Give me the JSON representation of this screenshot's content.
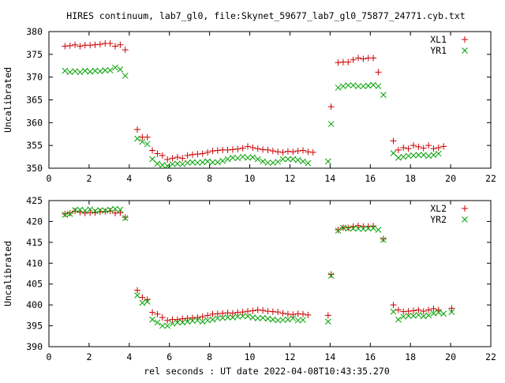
{
  "title": "HIRES continuum, lab7_gl0, file:Skynet_59677_lab7_gl0_75877_24771.cyb.txt",
  "xlabel": "rel seconds : UT date 2022-04-08T10:43:35.270",
  "colors": {
    "plus": "#cc0000",
    "cross": "#00a000",
    "axis": "#000000"
  },
  "chart_data": [
    {
      "type": "scatter",
      "ylabel": "Uncalibrated",
      "xlim": [
        0,
        22
      ],
      "ylim": [
        350,
        380
      ],
      "xticks": [
        "0",
        "2",
        "4",
        "6",
        "8",
        "10",
        "12",
        "14",
        "16",
        "18",
        "20",
        "22"
      ],
      "yticks": [
        "350",
        "355",
        "360",
        "365",
        "370",
        "375",
        "380"
      ],
      "x": [
        0.8,
        1.05,
        1.3,
        1.55,
        1.8,
        2.05,
        2.3,
        2.55,
        2.8,
        3.05,
        3.3,
        3.55,
        3.8,
        4.05,
        4.4,
        4.65,
        4.9,
        5.15,
        5.4,
        5.65,
        5.9,
        6.15,
        6.4,
        6.65,
        6.9,
        7.15,
        7.4,
        7.65,
        7.9,
        8.15,
        8.4,
        8.65,
        8.9,
        9.15,
        9.4,
        9.65,
        9.9,
        10.15,
        10.4,
        10.65,
        10.9,
        11.15,
        11.4,
        11.65,
        11.9,
        12.15,
        12.4,
        12.65,
        12.9,
        13.15,
        13.4,
        13.65,
        13.9,
        14.05,
        14.4,
        14.65,
        14.9,
        15.15,
        15.4,
        15.65,
        15.9,
        16.15,
        16.4,
        16.65,
        16.9,
        17.15,
        17.4,
        17.65,
        17.9,
        18.15,
        18.4,
        18.65,
        18.9,
        19.15,
        19.4,
        19.65,
        19.9,
        20.05
      ],
      "series": [
        {
          "name": "XL1",
          "marker": "plus",
          "values": [
            376.8,
            376.9,
            377.1,
            376.8,
            377.0,
            377.0,
            377.1,
            377.2,
            377.4,
            377.4,
            376.8,
            377.1,
            376.0,
            358.5,
            356.8,
            356.8,
            353.9,
            353.2,
            352.8,
            351.9,
            352.2,
            352.4,
            352.2,
            352.8,
            353.0,
            353.1,
            353.2,
            353.5,
            353.8,
            353.9,
            354.0,
            354.0,
            354.1,
            354.2,
            354.4,
            354.8,
            354.5,
            354.3,
            354.1,
            354.0,
            353.8,
            353.6,
            353.5,
            353.7,
            353.6,
            353.8,
            353.9,
            353.6,
            353.5,
            363.5,
            373.2,
            373.3,
            373.3,
            373.8,
            374.2,
            374.0,
            374.2,
            374.2,
            371.1,
            356.0,
            354.0,
            354.5,
            354.3,
            355.0,
            354.7,
            354.4,
            355.0,
            354.3,
            354.5,
            354.8
          ],
          "x": [
            0.8,
            1.05,
            1.3,
            1.55,
            1.8,
            2.05,
            2.3,
            2.55,
            2.8,
            3.05,
            3.3,
            3.55,
            3.8,
            4.4,
            4.65,
            4.9,
            5.15,
            5.4,
            5.65,
            5.9,
            6.15,
            6.4,
            6.65,
            6.9,
            7.15,
            7.4,
            7.65,
            7.9,
            8.15,
            8.4,
            8.65,
            8.9,
            9.15,
            9.4,
            9.65,
            9.9,
            10.15,
            10.4,
            10.65,
            10.9,
            11.15,
            11.4,
            11.65,
            11.9,
            12.15,
            12.4,
            12.65,
            12.9,
            13.15,
            14.05,
            14.4,
            14.65,
            14.9,
            15.15,
            15.4,
            15.65,
            15.9,
            16.15,
            16.4,
            17.15,
            17.4,
            17.65,
            17.9,
            18.15,
            18.4,
            18.65,
            18.9,
            19.15,
            19.4,
            19.65
          ]
        },
        {
          "name": "YR1",
          "marker": "cross",
          "values": [
            371.4,
            371.1,
            371.3,
            371.1,
            371.4,
            371.2,
            371.4,
            371.3,
            371.5,
            371.5,
            372.1,
            371.7,
            370.3,
            356.5,
            355.8,
            355.3,
            352.0,
            351.0,
            350.7,
            350.5,
            350.9,
            351.0,
            350.9,
            351.2,
            351.3,
            351.2,
            351.3,
            351.5,
            351.3,
            351.3,
            351.6,
            352.0,
            352.3,
            352.2,
            352.5,
            352.3,
            352.4,
            352.0,
            351.5,
            351.2,
            351.2,
            351.4,
            352.0,
            352.0,
            352.0,
            351.8,
            351.5,
            351.1,
            351.5,
            359.7,
            367.7,
            368.0,
            368.2,
            368.2,
            368.0,
            368.0,
            368.1,
            368.3,
            368.0,
            366.1,
            353.3,
            352.3,
            352.5,
            352.7,
            352.8,
            352.9,
            352.9,
            352.7,
            352.9,
            353.2
          ],
          "x": [
            0.8,
            1.05,
            1.3,
            1.55,
            1.8,
            2.05,
            2.3,
            2.55,
            2.8,
            3.05,
            3.3,
            3.55,
            3.8,
            4.4,
            4.65,
            4.9,
            5.15,
            5.4,
            5.65,
            5.9,
            6.15,
            6.4,
            6.65,
            6.9,
            7.15,
            7.4,
            7.65,
            7.9,
            8.15,
            8.4,
            8.65,
            8.9,
            9.15,
            9.4,
            9.65,
            9.9,
            10.15,
            10.4,
            10.65,
            10.9,
            11.15,
            11.4,
            11.65,
            11.9,
            12.15,
            12.4,
            12.65,
            12.9,
            13.9,
            14.05,
            14.4,
            14.65,
            14.9,
            15.15,
            15.4,
            15.65,
            15.9,
            16.15,
            16.4,
            16.65,
            17.15,
            17.4,
            17.65,
            17.9,
            18.15,
            18.4,
            18.65,
            18.9,
            19.15,
            19.4
          ]
        }
      ]
    },
    {
      "type": "scatter",
      "ylabel": "Uncalibrated",
      "xlim": [
        0,
        22
      ],
      "ylim": [
        390,
        425
      ],
      "xticks": [
        "0",
        "2",
        "4",
        "6",
        "8",
        "10",
        "12",
        "14",
        "16",
        "18",
        "20",
        "22"
      ],
      "yticks": [
        "390",
        "395",
        "400",
        "405",
        "410",
        "415",
        "420",
        "425"
      ],
      "series": [
        {
          "name": "XL2",
          "marker": "plus",
          "values": [
            421.8,
            422.0,
            422.5,
            422.2,
            422.0,
            422.1,
            422.1,
            422.3,
            422.4,
            422.5,
            422.0,
            422.1,
            421.0,
            403.5,
            401.8,
            401.3,
            398.2,
            397.8,
            397.0,
            396.3,
            396.5,
            396.5,
            396.7,
            396.8,
            396.9,
            397.0,
            397.2,
            397.5,
            397.8,
            397.9,
            398.0,
            398.1,
            398.0,
            398.2,
            398.3,
            398.5,
            398.6,
            398.8,
            398.7,
            398.5,
            398.4,
            398.3,
            398.0,
            397.8,
            397.7,
            397.9,
            397.8,
            397.6,
            397.5,
            407.3,
            418.0,
            418.5,
            418.5,
            418.8,
            419.0,
            418.8,
            418.8,
            418.9,
            415.8,
            400.0,
            398.8,
            398.4,
            398.5,
            398.6,
            398.8,
            398.5,
            398.8,
            399.1,
            398.8,
            399.2
          ],
          "x": [
            0.8,
            1.05,
            1.3,
            1.55,
            1.8,
            2.05,
            2.3,
            2.55,
            2.8,
            3.05,
            3.3,
            3.55,
            3.8,
            4.4,
            4.65,
            4.9,
            5.15,
            5.4,
            5.65,
            5.9,
            6.15,
            6.4,
            6.65,
            6.9,
            7.15,
            7.4,
            7.65,
            7.9,
            8.15,
            8.4,
            8.65,
            8.9,
            9.15,
            9.4,
            9.65,
            9.9,
            10.15,
            10.4,
            10.65,
            10.9,
            11.15,
            11.4,
            11.65,
            11.9,
            12.15,
            12.4,
            12.65,
            12.9,
            13.9,
            14.05,
            14.4,
            14.65,
            14.9,
            15.15,
            15.4,
            15.65,
            15.9,
            16.15,
            16.65,
            17.15,
            17.4,
            17.65,
            17.9,
            18.15,
            18.4,
            18.65,
            18.9,
            19.15,
            19.4,
            20.05
          ]
        },
        {
          "name": "YR2",
          "marker": "cross",
          "values": [
            421.6,
            421.8,
            422.7,
            422.8,
            422.6,
            422.9,
            422.5,
            422.7,
            422.6,
            422.8,
            423.0,
            422.8,
            420.8,
            402.3,
            400.5,
            400.8,
            396.5,
            395.8,
            395.0,
            395.0,
            395.5,
            395.8,
            395.8,
            396.0,
            396.2,
            396.3,
            396.0,
            396.3,
            396.5,
            396.8,
            396.9,
            397.0,
            397.0,
            397.2,
            397.3,
            397.3,
            397.0,
            396.8,
            396.9,
            396.7,
            396.5,
            396.3,
            396.4,
            396.5,
            396.8,
            396.3,
            396.4,
            396.0,
            407.0,
            417.8,
            418.5,
            418.3,
            418.3,
            418.3,
            418.2,
            418.3,
            418.4,
            418.0,
            415.6,
            398.4,
            396.5,
            397.2,
            397.4,
            397.4,
            397.6,
            397.3,
            397.5,
            398.0,
            398.2,
            397.9,
            398.3
          ],
          "x": [
            0.8,
            1.05,
            1.3,
            1.55,
            1.8,
            2.05,
            2.3,
            2.55,
            2.8,
            3.05,
            3.3,
            3.55,
            3.8,
            4.4,
            4.65,
            4.9,
            5.15,
            5.4,
            5.65,
            5.9,
            6.15,
            6.4,
            6.65,
            6.9,
            7.15,
            7.4,
            7.65,
            7.9,
            8.15,
            8.4,
            8.65,
            8.9,
            9.15,
            9.4,
            9.65,
            9.9,
            10.15,
            10.4,
            10.65,
            10.9,
            11.15,
            11.4,
            11.65,
            11.9,
            12.15,
            12.4,
            12.65,
            13.9,
            14.05,
            14.4,
            14.65,
            14.9,
            15.15,
            15.4,
            15.65,
            15.9,
            16.15,
            16.4,
            16.65,
            17.15,
            17.4,
            17.65,
            17.9,
            18.15,
            18.4,
            18.65,
            18.9,
            19.15,
            19.4,
            19.65,
            20.05
          ]
        }
      ]
    }
  ]
}
